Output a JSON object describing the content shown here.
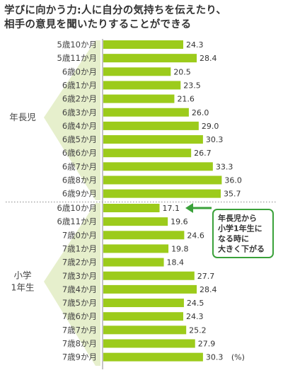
{
  "title": {
    "line1": "学びに向かう力:人に自分の気持ちを伝えたり、",
    "line2": "相手の意見を聞いたりすることができる"
  },
  "colors": {
    "bar": "#9ccb1b",
    "band": "#e6efcc",
    "axis": "#888888",
    "divider": "#888888",
    "callout_border": "#3aa13a",
    "arrow": "#3aa13a"
  },
  "chart_data": {
    "type": "bar",
    "orientation": "horizontal",
    "unit_label": "(%)",
    "categories": [
      "5歳10か月",
      "5歳11か月",
      "6歳0か月",
      "6歳1か月",
      "6歳2か月",
      "6歳3か月",
      "6歳4か月",
      "6歳5か月",
      "6歳6か月",
      "6歳7か月",
      "6歳8か月",
      "6歳9か月",
      "6歳10か月",
      "6歳11か月",
      "7歳0か月",
      "7歳1か月",
      "7歳2か月",
      "7歳3か月",
      "7歳4か月",
      "7歳5か月",
      "7歳6か月",
      "7歳7か月",
      "7歳8か月",
      "7歳9か月"
    ],
    "values": [
      24.3,
      28.4,
      20.5,
      23.5,
      21.6,
      26.0,
      29.0,
      30.3,
      26.7,
      33.3,
      36.0,
      35.7,
      17.1,
      19.6,
      24.6,
      19.8,
      18.4,
      27.7,
      28.4,
      24.5,
      24.3,
      25.2,
      27.9,
      30.3
    ],
    "value_labels": [
      "24.3",
      "28.4",
      "20.5",
      "23.5",
      "21.6",
      "26.0",
      "29.0",
      "30.3",
      "26.7",
      "33.3",
      "36.0",
      "35.7",
      "17.1",
      "19.6",
      "24.6",
      "19.8",
      "18.4",
      "27.7",
      "28.4",
      "24.5",
      "24.3",
      "25.2",
      "27.9",
      "30.3"
    ],
    "groups": [
      {
        "label_lines": [
          "年長児"
        ],
        "start": 0,
        "end": 11
      },
      {
        "label_lines": [
          "小学",
          "1年生"
        ],
        "start": 12,
        "end": 23
      }
    ],
    "annotation": {
      "lines": [
        "年長児から",
        "小学1年生に",
        "なる時に",
        "大きく下がる"
      ],
      "points_to_index": 12
    }
  }
}
